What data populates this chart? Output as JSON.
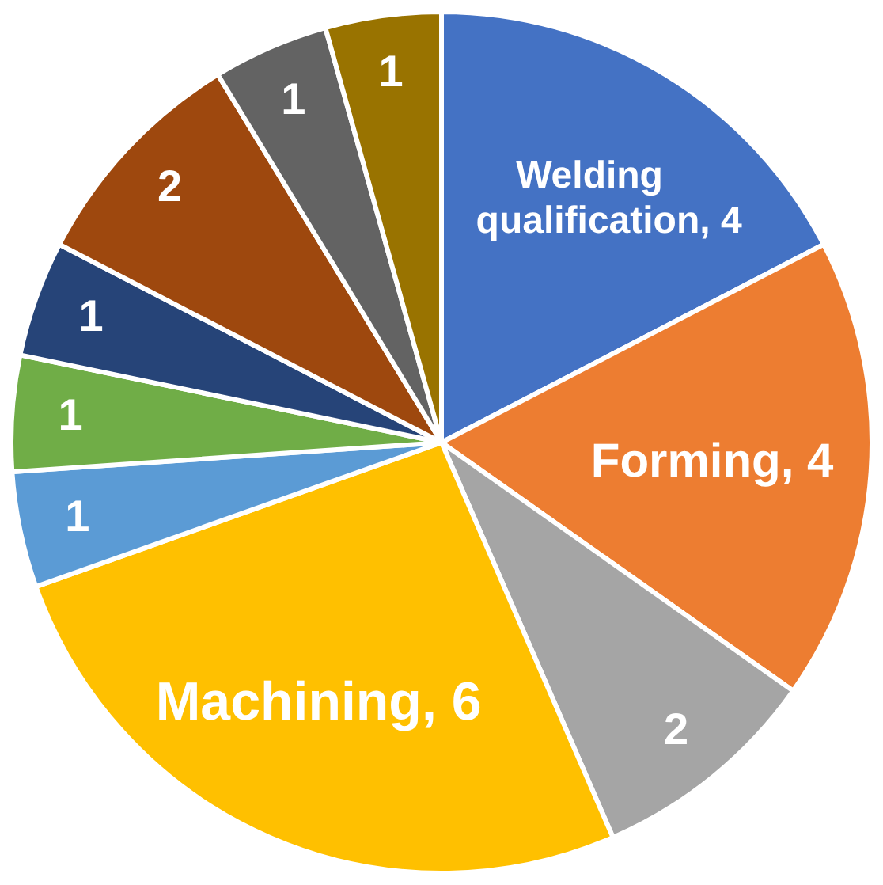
{
  "chart_data": {
    "type": "pie",
    "categories": [
      "Welding qualification",
      "Forming",
      null,
      "Machining",
      null,
      null,
      null,
      null,
      null,
      null
    ],
    "values": [
      4,
      4,
      2,
      6,
      1,
      1,
      1,
      2,
      1,
      1
    ],
    "colors": [
      "#4472c4",
      "#ed7d31",
      "#a5a5a5",
      "#ffc000",
      "#5b9bd5",
      "#70ad47",
      "#264478",
      "#9e480e",
      "#636363",
      "#997300"
    ],
    "value_labels": [
      ", 4",
      ", 4",
      "2",
      ", 6",
      "1",
      "1",
      "1",
      "2",
      "1",
      "1"
    ],
    "legend": false
  }
}
